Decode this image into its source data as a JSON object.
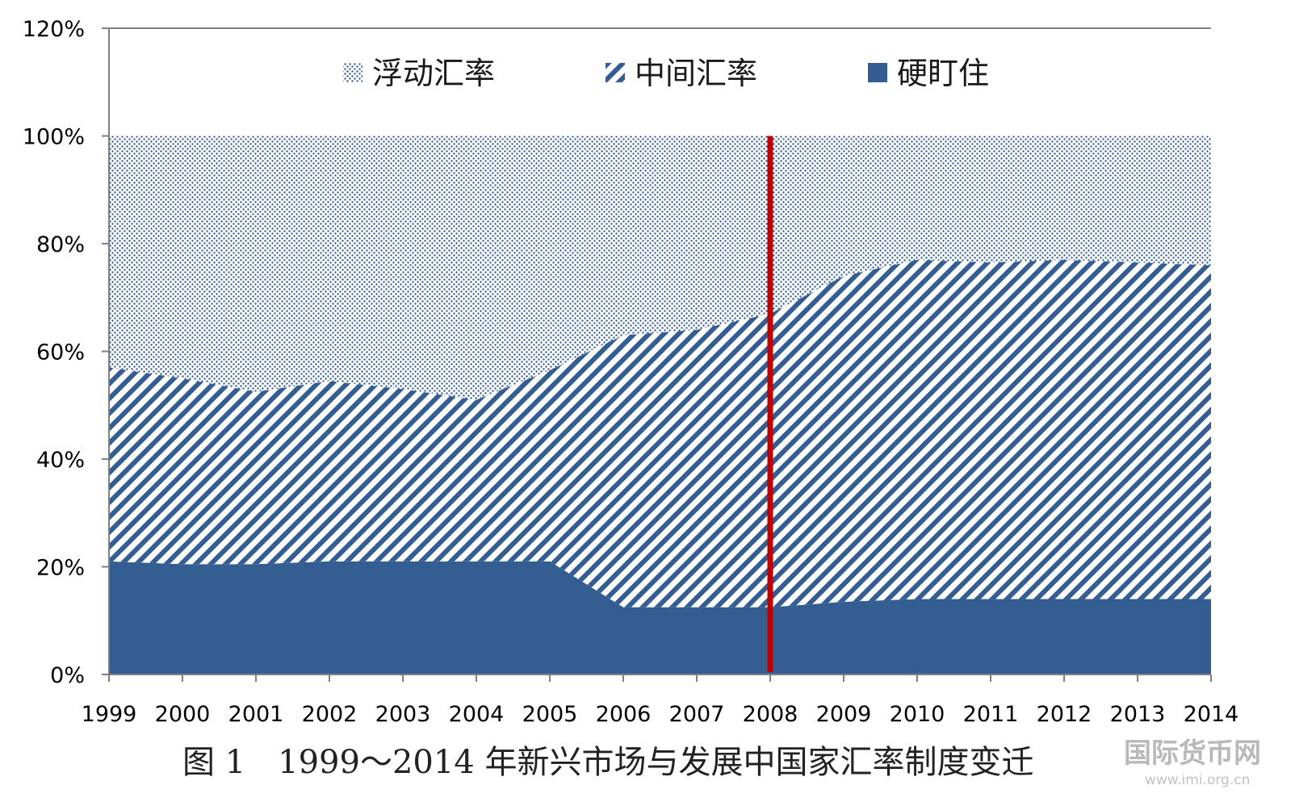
{
  "chart_data": {
    "type": "area",
    "stacked": true,
    "x": [
      "1999",
      "2000",
      "2001",
      "2002",
      "2003",
      "2004",
      "2005",
      "2006",
      "2007",
      "2008",
      "2009",
      "2010",
      "2011",
      "2012",
      "2013",
      "2014"
    ],
    "series": [
      {
        "name": "硬盯住",
        "values": [
          0.21,
          0.205,
          0.205,
          0.21,
          0.21,
          0.21,
          0.21,
          0.125,
          0.125,
          0.125,
          0.135,
          0.14,
          0.14,
          0.14,
          0.14,
          0.14
        ],
        "color": "#345d91",
        "pattern": "solid"
      },
      {
        "name": "中间汇率",
        "values": [
          0.36,
          0.345,
          0.32,
          0.335,
          0.32,
          0.3,
          0.355,
          0.505,
          0.515,
          0.545,
          0.605,
          0.63,
          0.625,
          0.63,
          0.625,
          0.62
        ],
        "color": "#345d91",
        "pattern": "diagonal-stripes"
      },
      {
        "name": "浮动汇率",
        "values": [
          0.43,
          0.45,
          0.475,
          0.455,
          0.47,
          0.49,
          0.435,
          0.37,
          0.36,
          0.33,
          0.26,
          0.23,
          0.235,
          0.23,
          0.235,
          0.24
        ],
        "color": "#345d91",
        "pattern": "dots"
      }
    ],
    "ylim": [
      0,
      1.2
    ],
    "yticks": [
      "0%",
      "20%",
      "40%",
      "60%",
      "80%",
      "100%",
      "120%"
    ],
    "grid": false,
    "legend_position": "top-center",
    "annotations": [
      {
        "type": "vertical-line",
        "x": "2008",
        "color": "#c00000"
      }
    ],
    "caption": "图 1　1999～2014 年新兴市场与发展中国家汇率制度变迁",
    "xlabel": "",
    "ylabel": ""
  },
  "watermark": {
    "text": "国际货币网",
    "url": "www.imi.org.cn"
  },
  "colors": {
    "accent": "#345d91",
    "marker_line": "#c00000",
    "axis": "#7f7f7f"
  }
}
